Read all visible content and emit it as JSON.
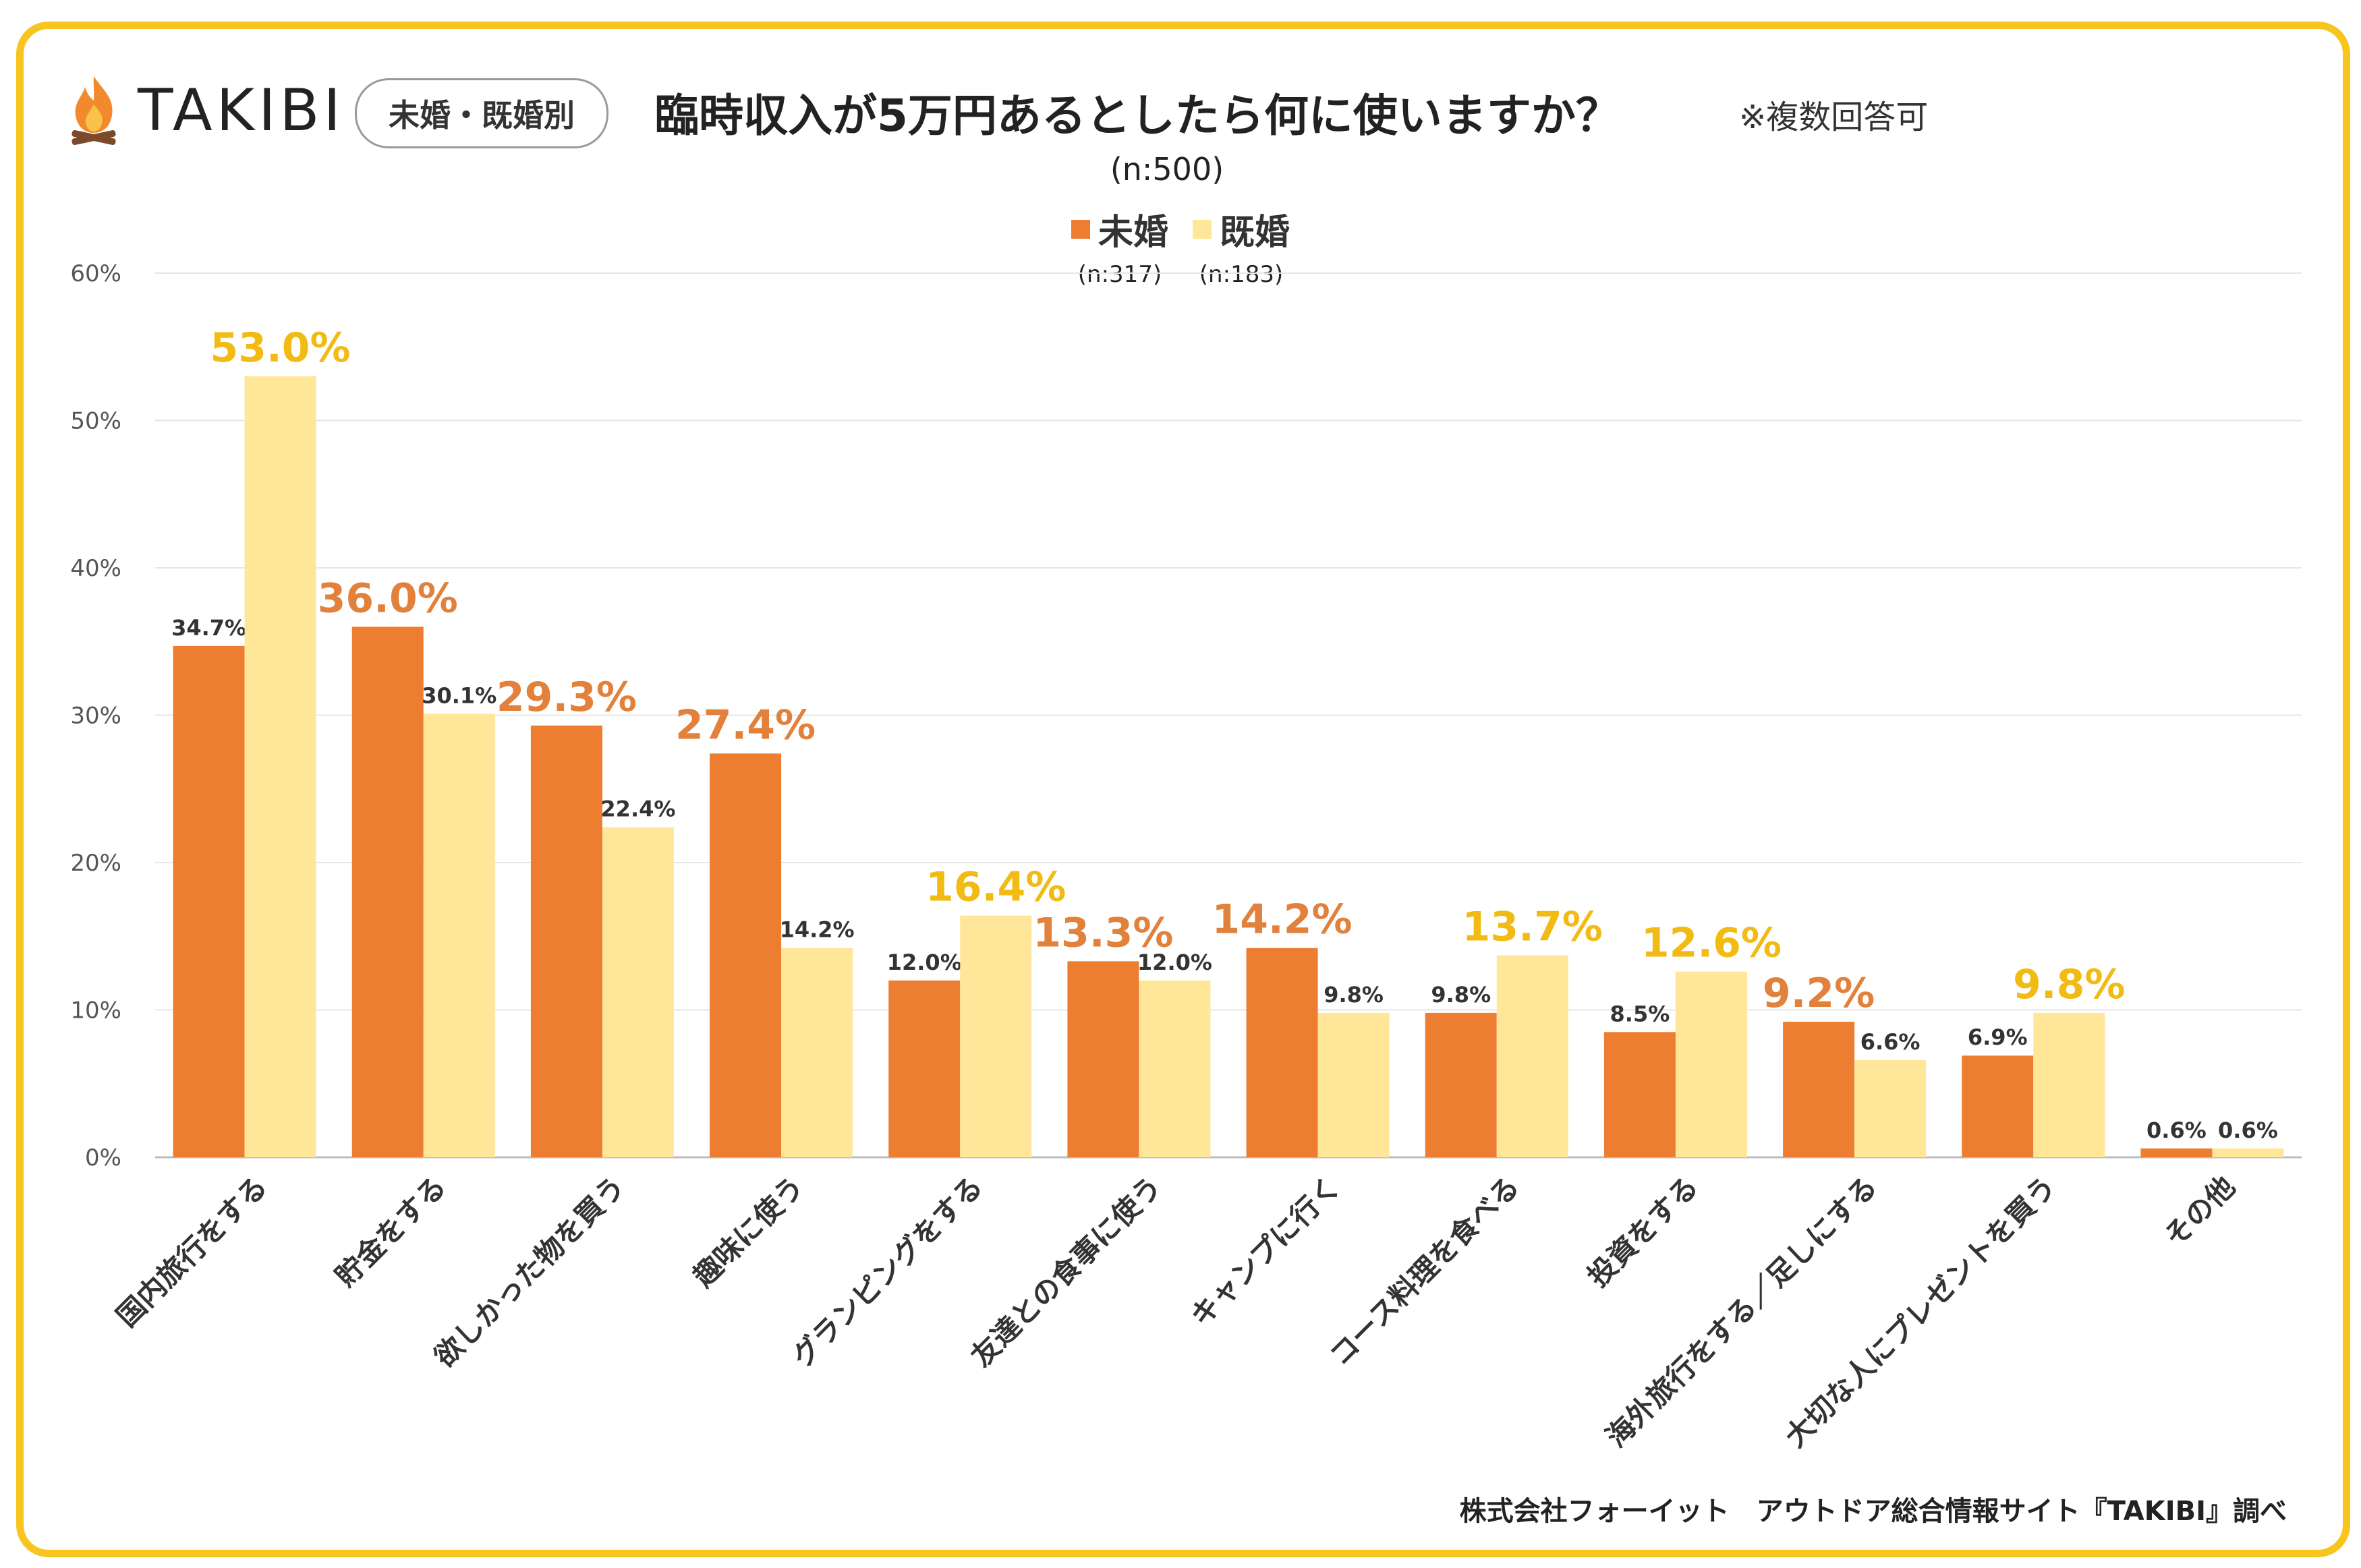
{
  "brand": {
    "name": "TAKIBI",
    "icon": "campfire-icon",
    "tag": "未婚・既婚別"
  },
  "header": {
    "title": "臨時収入が5万円あるとしたら何に使いますか？",
    "note": "※複数回答可",
    "sample": "(n:500)"
  },
  "legend": [
    {
      "label": "未婚",
      "n": "(n:317)",
      "color": "#ED7D31"
    },
    {
      "label": "既婚",
      "n": "(n:183)",
      "color": "#FFE699"
    }
  ],
  "credit": "株式会社フォーイット　アウトドア総合情報サイト『TAKIBI』調べ",
  "colors": {
    "frame": "#F7C51E",
    "single_highlight": "#E2813B",
    "married_highlight": "#F2BB14"
  },
  "chart_data": {
    "type": "bar",
    "title": "臨時収入が5万円あるとしたら何に使いますか？",
    "ylim": [
      0,
      60
    ],
    "y_ticks": [
      "0%",
      "10%",
      "20%",
      "30%",
      "40%",
      "50%",
      "60%"
    ],
    "grid": true,
    "legend_position": "top-center",
    "categories": [
      "国内旅行をする",
      "貯金をする",
      "欲しかった物を買う",
      "趣味に使う",
      "グランピングをする",
      "友達との食事に使う",
      "キャンプに行く",
      "コース料理を食べる",
      "投資をする",
      "海外旅行をする／足しにする",
      "大切な人にプレゼントを買う",
      "その他"
    ],
    "series": [
      {
        "name": "未婚",
        "values": [
          34.7,
          36.0,
          29.3,
          27.4,
          12.0,
          13.3,
          14.2,
          9.8,
          8.5,
          9.2,
          6.9,
          0.6
        ],
        "labels": [
          "34.7%",
          "36.0%",
          "29.3%",
          "27.4%",
          "12.0%",
          "13.3%",
          "14.2%",
          "9.8%",
          "8.5%",
          "9.2%",
          "6.9%",
          "0.6%"
        ]
      },
      {
        "name": "既婚",
        "values": [
          53.0,
          30.1,
          22.4,
          14.2,
          16.4,
          12.0,
          9.8,
          13.7,
          12.6,
          6.6,
          9.8,
          0.6
        ],
        "labels": [
          "53.0%",
          "30.1%",
          "22.4%",
          "14.2%",
          "16.4%",
          "12.0%",
          "9.8%",
          "13.7%",
          "12.6%",
          "6.6%",
          "9.8%",
          "0.6%"
        ]
      }
    ],
    "highlighted_labels": [
      [
        false,
        true,
        true,
        true,
        false,
        true,
        true,
        false,
        false,
        true,
        false,
        false
      ],
      [
        true,
        false,
        false,
        false,
        true,
        false,
        false,
        true,
        true,
        false,
        true,
        false
      ]
    ]
  }
}
